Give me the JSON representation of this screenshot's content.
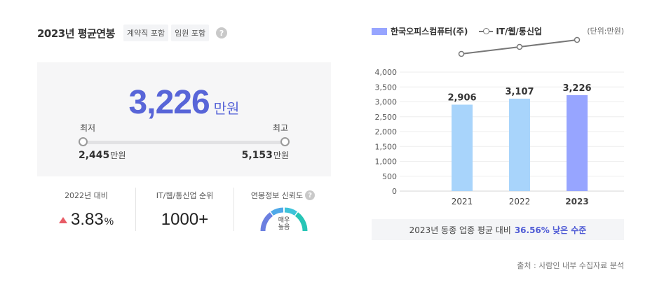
{
  "left": {
    "title": "2023년 평균연봉",
    "tags": [
      "계약직 포함",
      "임원 포함"
    ],
    "help_glyph": "?",
    "salary": {
      "value": "3,226",
      "unit": "만원",
      "min_label": "최저",
      "max_label": "최고",
      "min_value": "2,445",
      "max_value": "5,153",
      "min_unit": "만원",
      "max_unit": "만원"
    },
    "stats": {
      "growth": {
        "label": "2022년 대비",
        "value": "3.83",
        "unit": "%",
        "direction": "up",
        "color": "#e85c66"
      },
      "rank": {
        "label": "IT/웹/통신업 순위",
        "value": "1000+"
      },
      "reliability": {
        "label": "연봉정보 신뢰도",
        "gauge_text_1": "매우",
        "gauge_text_2": "높음"
      }
    }
  },
  "right": {
    "legend": {
      "company": "한국오피스컴퓨터(주)",
      "industry": "IT/웹/통신업"
    },
    "unit_note": "(단위:만원)",
    "compare": {
      "prefix": "2023년 동종 업종 평균 대비",
      "highlight": "36.56% 낮은 수준"
    },
    "source": "출처 : 사람인 내부 수집자료 분석"
  },
  "colors": {
    "accent": "#5865d8",
    "bar_past": "#a8d4fb",
    "bar_current": "#97a5ff",
    "line": "#777777"
  },
  "chart_data": {
    "type": "bar",
    "categories": [
      "2021",
      "2022",
      "2023"
    ],
    "series": [
      {
        "name": "한국오피스컴퓨터(주)",
        "type": "bar",
        "values": [
          2906,
          3107,
          3226
        ]
      },
      {
        "name": "IT/웹/통신업",
        "type": "line",
        "values": [
          null,
          null,
          null
        ]
      }
    ],
    "data_labels": [
      "2,906",
      "3,107",
      "3,226"
    ],
    "y_ticks": [
      "4,000",
      "3,500",
      "3,000",
      "2,500",
      "2,000",
      "1,500",
      "1,000",
      "500",
      "0"
    ],
    "ylim": [
      0,
      4000
    ],
    "highlight_category": "2023"
  }
}
